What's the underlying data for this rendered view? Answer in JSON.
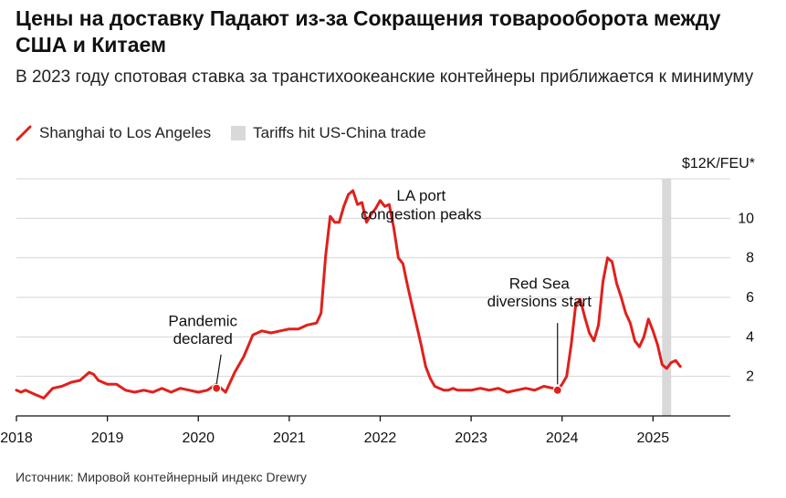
{
  "title": "Цены на доставку Падают из-за Сокращения товарооборота между США и Китаем",
  "subtitle": "В 2023 году спотовая ставка за транстихоокеанские контейнеры приближается к минимуму",
  "legend": {
    "line_label": "Shanghai to Los Angeles",
    "band_label": "Tariffs hit US-China trade"
  },
  "source": "Источник: Мировой контейнерный индекс Drewry",
  "colors": {
    "line": "#e0201b",
    "band": "#d9d9d9",
    "grid": "#d6d6d6",
    "axis": "#111111"
  },
  "chart_data": {
    "type": "line",
    "title": "Цены на доставку Падают из-за Сокращения товарооборота между США и Китаем",
    "ylabel": "$12K/FEU*",
    "y_unit_label": "$12K/FEU*",
    "xlim": [
      2018.0,
      2025.85
    ],
    "ylim": [
      0,
      12
    ],
    "x_ticks": [
      2018,
      2019,
      2020,
      2021,
      2022,
      2023,
      2024,
      2025
    ],
    "x_tick_labels": [
      "2018",
      "2019",
      "2020",
      "2021",
      "2022",
      "2023",
      "2024",
      "2025"
    ],
    "y_ticks": [
      2,
      4,
      6,
      8,
      10
    ],
    "y_tick_labels": [
      "2",
      "4",
      "6",
      "8",
      "10"
    ],
    "grid": true,
    "shaded_band": {
      "label": "Tariffs hit US-China trade",
      "x_start": 2025.1,
      "x_end": 2025.2
    },
    "series": [
      {
        "name": "Shanghai to Los Angeles",
        "x": [
          2018.0,
          2018.05,
          2018.1,
          2018.2,
          2018.3,
          2018.4,
          2018.5,
          2018.6,
          2018.7,
          2018.8,
          2018.85,
          2018.9,
          2019.0,
          2019.1,
          2019.2,
          2019.3,
          2019.4,
          2019.5,
          2019.6,
          2019.7,
          2019.8,
          2019.9,
          2020.0,
          2020.1,
          2020.2,
          2020.3,
          2020.4,
          2020.5,
          2020.6,
          2020.7,
          2020.8,
          2020.9,
          2021.0,
          2021.1,
          2021.2,
          2021.3,
          2021.35,
          2021.4,
          2021.45,
          2021.5,
          2021.55,
          2021.6,
          2021.65,
          2021.7,
          2021.75,
          2021.8,
          2021.85,
          2021.9,
          2021.95,
          2022.0,
          2022.05,
          2022.1,
          2022.15,
          2022.2,
          2022.25,
          2022.3,
          2022.35,
          2022.4,
          2022.45,
          2022.5,
          2022.55,
          2022.6,
          2022.65,
          2022.7,
          2022.75,
          2022.8,
          2022.85,
          2022.9,
          2023.0,
          2023.1,
          2023.2,
          2023.3,
          2023.4,
          2023.5,
          2023.6,
          2023.7,
          2023.8,
          2023.9,
          2023.95,
          2024.0,
          2024.05,
          2024.1,
          2024.15,
          2024.2,
          2024.25,
          2024.3,
          2024.35,
          2024.4,
          2024.45,
          2024.5,
          2024.55,
          2024.6,
          2024.65,
          2024.7,
          2024.75,
          2024.8,
          2024.85,
          2024.9,
          2024.95,
          2025.0,
          2025.05,
          2025.1,
          2025.15,
          2025.2,
          2025.25,
          2025.3
        ],
        "values": [
          1.3,
          1.2,
          1.3,
          1.1,
          0.9,
          1.4,
          1.5,
          1.7,
          1.8,
          2.2,
          2.1,
          1.8,
          1.6,
          1.6,
          1.3,
          1.2,
          1.3,
          1.2,
          1.4,
          1.2,
          1.4,
          1.3,
          1.2,
          1.3,
          1.6,
          1.2,
          2.2,
          3.0,
          4.1,
          4.3,
          4.2,
          4.3,
          4.4,
          4.4,
          4.6,
          4.7,
          5.2,
          8.1,
          10.1,
          9.8,
          9.8,
          10.6,
          11.2,
          11.4,
          10.7,
          10.8,
          9.8,
          10.2,
          10.5,
          10.9,
          10.6,
          10.7,
          9.5,
          8.0,
          7.7,
          6.6,
          5.6,
          4.6,
          3.6,
          2.5,
          1.9,
          1.5,
          1.4,
          1.3,
          1.3,
          1.4,
          1.3,
          1.3,
          1.3,
          1.4,
          1.3,
          1.4,
          1.2,
          1.3,
          1.4,
          1.3,
          1.5,
          1.4,
          1.3,
          1.6,
          2.0,
          3.6,
          5.6,
          5.9,
          5.0,
          4.2,
          3.8,
          4.6,
          6.8,
          8.0,
          7.8,
          6.7,
          6.0,
          5.2,
          4.7,
          3.8,
          3.5,
          4.0,
          4.9,
          4.3,
          3.6,
          2.6,
          2.4,
          2.7,
          2.8,
          2.5
        ]
      }
    ],
    "annotations": [
      {
        "text": "LA port",
        "x": 2022.45,
        "y": 10.9
      },
      {
        "text": "congestion peaks",
        "x": 2022.45,
        "y": 9.95
      },
      {
        "text": "Pandemic",
        "x": 2020.05,
        "y": 4.55
      },
      {
        "text": "declared",
        "x": 2020.05,
        "y": 3.65
      },
      {
        "text": "Red Sea",
        "x": 2023.75,
        "y": 6.45
      },
      {
        "text": "diversions start",
        "x": 2023.75,
        "y": 5.55
      }
    ],
    "markers": [
      {
        "name": "pandemic-marker",
        "x": 2020.2,
        "y": 1.4
      },
      {
        "name": "red-sea-marker",
        "x": 2023.95,
        "y": 1.3
      }
    ],
    "leaders": [
      {
        "name": "pandemic-leader",
        "x1": 2020.25,
        "y1": 3.1,
        "x2": 2020.2,
        "y2": 1.6
      },
      {
        "name": "red-sea-leader",
        "x1": 2023.95,
        "y1": 4.7,
        "x2": 2023.95,
        "y2": 1.6
      }
    ]
  }
}
